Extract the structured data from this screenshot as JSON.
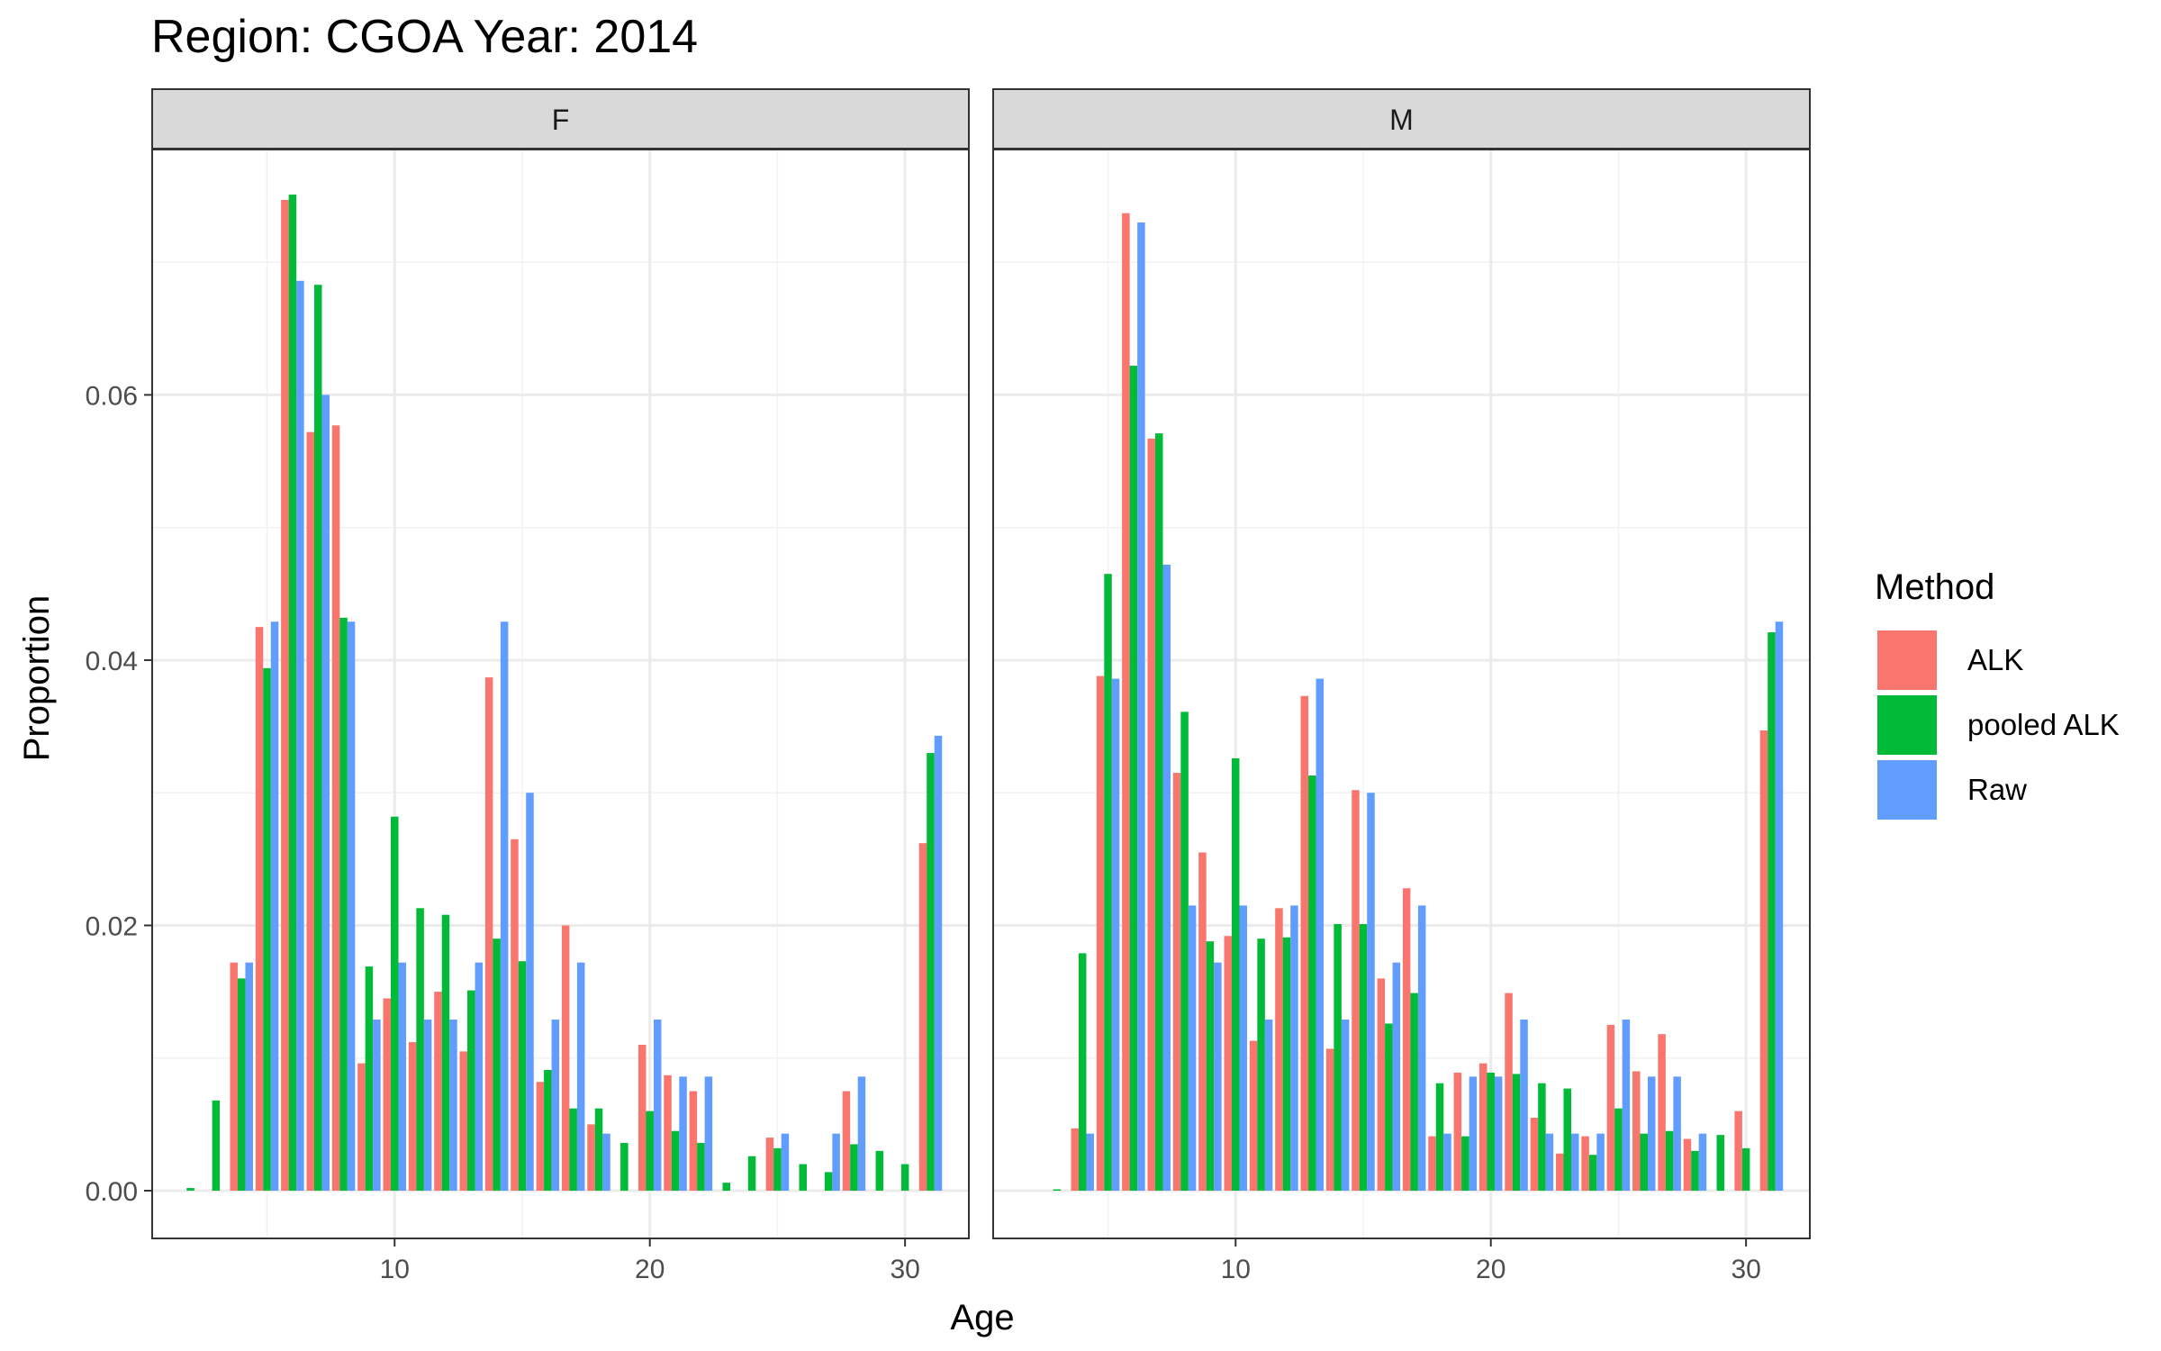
{
  "chart_data": {
    "type": "bar",
    "title": "Region: CGOA Year: 2014",
    "xlabel": "Age",
    "ylabel": "Proportion",
    "xlim": [
      0.5,
      32.5
    ],
    "ylim": [
      -0.0036,
      0.0785
    ],
    "x_ticks": [
      10,
      20,
      30
    ],
    "x_tick_labels": [
      "10",
      "20",
      "30"
    ],
    "y_ticks": [
      0,
      0.02,
      0.04,
      0.06
    ],
    "y_tick_labels": [
      "0.00",
      "0.02",
      "0.04",
      "0.06"
    ],
    "grid": true,
    "legend": {
      "title": "Method",
      "position": "right",
      "entries": [
        "ALK",
        "pooled ALK",
        "Raw"
      ]
    },
    "colors": {
      "ALK": "#F8766D",
      "pooled ALK": "#00BA38",
      "Raw": "#619CFF",
      "strip_bg": "#D9D9D9",
      "grid": "#EBEBEB"
    },
    "panels": [
      {
        "label": "F",
        "series": [
          {
            "name": "ALK",
            "points": [
              [
                4,
                0.0172
              ],
              [
                5,
                0.0425
              ],
              [
                6,
                0.0747
              ],
              [
                7,
                0.0572
              ],
              [
                8,
                0.0577
              ],
              [
                9,
                0.0096
              ],
              [
                10,
                0.0145
              ],
              [
                11,
                0.0112
              ],
              [
                12,
                0.015
              ],
              [
                13,
                0.0105
              ],
              [
                14,
                0.0387
              ],
              [
                15,
                0.0265
              ],
              [
                16,
                0.0082
              ],
              [
                17,
                0.02
              ],
              [
                18,
                0.005
              ],
              [
                20,
                0.011
              ],
              [
                21,
                0.0087
              ],
              [
                22,
                0.0075
              ],
              [
                25,
                0.004
              ],
              [
                28,
                0.0075
              ],
              [
                31,
                0.0262
              ]
            ]
          },
          {
            "name": "pooled ALK",
            "points": [
              [
                2,
                0.0002
              ],
              [
                3,
                0.0068
              ],
              [
                4,
                0.016
              ],
              [
                5,
                0.0394
              ],
              [
                6,
                0.0751
              ],
              [
                7,
                0.0683
              ],
              [
                8,
                0.0432
              ],
              [
                9,
                0.0169
              ],
              [
                10,
                0.0282
              ],
              [
                11,
                0.0213
              ],
              [
                12,
                0.0208
              ],
              [
                13,
                0.0151
              ],
              [
                14,
                0.019
              ],
              [
                15,
                0.0173
              ],
              [
                16,
                0.0091
              ],
              [
                17,
                0.0062
              ],
              [
                18,
                0.0062
              ],
              [
                19,
                0.0036
              ],
              [
                20,
                0.006
              ],
              [
                21,
                0.0045
              ],
              [
                22,
                0.0036
              ],
              [
                23,
                0.0006
              ],
              [
                24,
                0.0026
              ],
              [
                25,
                0.0032
              ],
              [
                26,
                0.002
              ],
              [
                27,
                0.0014
              ],
              [
                28,
                0.0035
              ],
              [
                29,
                0.003
              ],
              [
                30,
                0.002
              ],
              [
                31,
                0.033
              ]
            ]
          },
          {
            "name": "Raw",
            "points": [
              [
                4,
                0.0172
              ],
              [
                5,
                0.0429
              ],
              [
                6,
                0.0686
              ],
              [
                7,
                0.06
              ],
              [
                8,
                0.0429
              ],
              [
                9,
                0.0129
              ],
              [
                10,
                0.0172
              ],
              [
                11,
                0.0129
              ],
              [
                12,
                0.0129
              ],
              [
                13,
                0.0172
              ],
              [
                14,
                0.0429
              ],
              [
                15,
                0.03
              ],
              [
                16,
                0.0129
              ],
              [
                17,
                0.0172
              ],
              [
                18,
                0.0043
              ],
              [
                20,
                0.0129
              ],
              [
                21,
                0.0086
              ],
              [
                22,
                0.0086
              ],
              [
                25,
                0.0043
              ],
              [
                27,
                0.0043
              ],
              [
                28,
                0.0086
              ],
              [
                31,
                0.0343
              ]
            ]
          }
        ]
      },
      {
        "label": "M",
        "series": [
          {
            "name": "ALK",
            "points": [
              [
                4,
                0.0047
              ],
              [
                5,
                0.0388
              ],
              [
                6,
                0.0737
              ],
              [
                7,
                0.0567
              ],
              [
                8,
                0.0315
              ],
              [
                9,
                0.0255
              ],
              [
                10,
                0.0192
              ],
              [
                11,
                0.0113
              ],
              [
                12,
                0.0213
              ],
              [
                13,
                0.0373
              ],
              [
                14,
                0.0107
              ],
              [
                15,
                0.0302
              ],
              [
                16,
                0.016
              ],
              [
                17,
                0.0228
              ],
              [
                18,
                0.0041
              ],
              [
                19,
                0.0089
              ],
              [
                20,
                0.0096
              ],
              [
                21,
                0.0149
              ],
              [
                22,
                0.0055
              ],
              [
                23,
                0.0028
              ],
              [
                24,
                0.0041
              ],
              [
                25,
                0.0125
              ],
              [
                26,
                0.009
              ],
              [
                27,
                0.0118
              ],
              [
                28,
                0.0039
              ],
              [
                30,
                0.006
              ],
              [
                31,
                0.0347
              ]
            ]
          },
          {
            "name": "pooled ALK",
            "points": [
              [
                3,
                0.0001
              ],
              [
                4,
                0.0179
              ],
              [
                5,
                0.0465
              ],
              [
                6,
                0.0622
              ],
              [
                7,
                0.0571
              ],
              [
                8,
                0.0361
              ],
              [
                9,
                0.0188
              ],
              [
                10,
                0.0326
              ],
              [
                11,
                0.019
              ],
              [
                12,
                0.0191
              ],
              [
                13,
                0.0313
              ],
              [
                14,
                0.0201
              ],
              [
                15,
                0.0201
              ],
              [
                16,
                0.0126
              ],
              [
                17,
                0.0149
              ],
              [
                18,
                0.0081
              ],
              [
                19,
                0.0041
              ],
              [
                20,
                0.0089
              ],
              [
                21,
                0.0088
              ],
              [
                22,
                0.0081
              ],
              [
                23,
                0.0077
              ],
              [
                24,
                0.0027
              ],
              [
                25,
                0.0062
              ],
              [
                26,
                0.0043
              ],
              [
                27,
                0.0045
              ],
              [
                28,
                0.003
              ],
              [
                29,
                0.0042
              ],
              [
                30,
                0.0032
              ],
              [
                31,
                0.0421
              ]
            ]
          },
          {
            "name": "Raw",
            "points": [
              [
                4,
                0.0043
              ],
              [
                5,
                0.0386
              ],
              [
                6,
                0.073
              ],
              [
                7,
                0.0472
              ],
              [
                8,
                0.0215
              ],
              [
                9,
                0.0172
              ],
              [
                10,
                0.0215
              ],
              [
                11,
                0.0129
              ],
              [
                12,
                0.0215
              ],
              [
                13,
                0.0386
              ],
              [
                14,
                0.0129
              ],
              [
                15,
                0.03
              ],
              [
                16,
                0.0172
              ],
              [
                17,
                0.0215
              ],
              [
                18,
                0.0043
              ],
              [
                19,
                0.0086
              ],
              [
                20,
                0.0086
              ],
              [
                21,
                0.0129
              ],
              [
                22,
                0.0043
              ],
              [
                23,
                0.0043
              ],
              [
                24,
                0.0043
              ],
              [
                25,
                0.0129
              ],
              [
                26,
                0.0086
              ],
              [
                27,
                0.0086
              ],
              [
                28,
                0.0043
              ],
              [
                31,
                0.0429
              ]
            ]
          }
        ]
      }
    ]
  }
}
